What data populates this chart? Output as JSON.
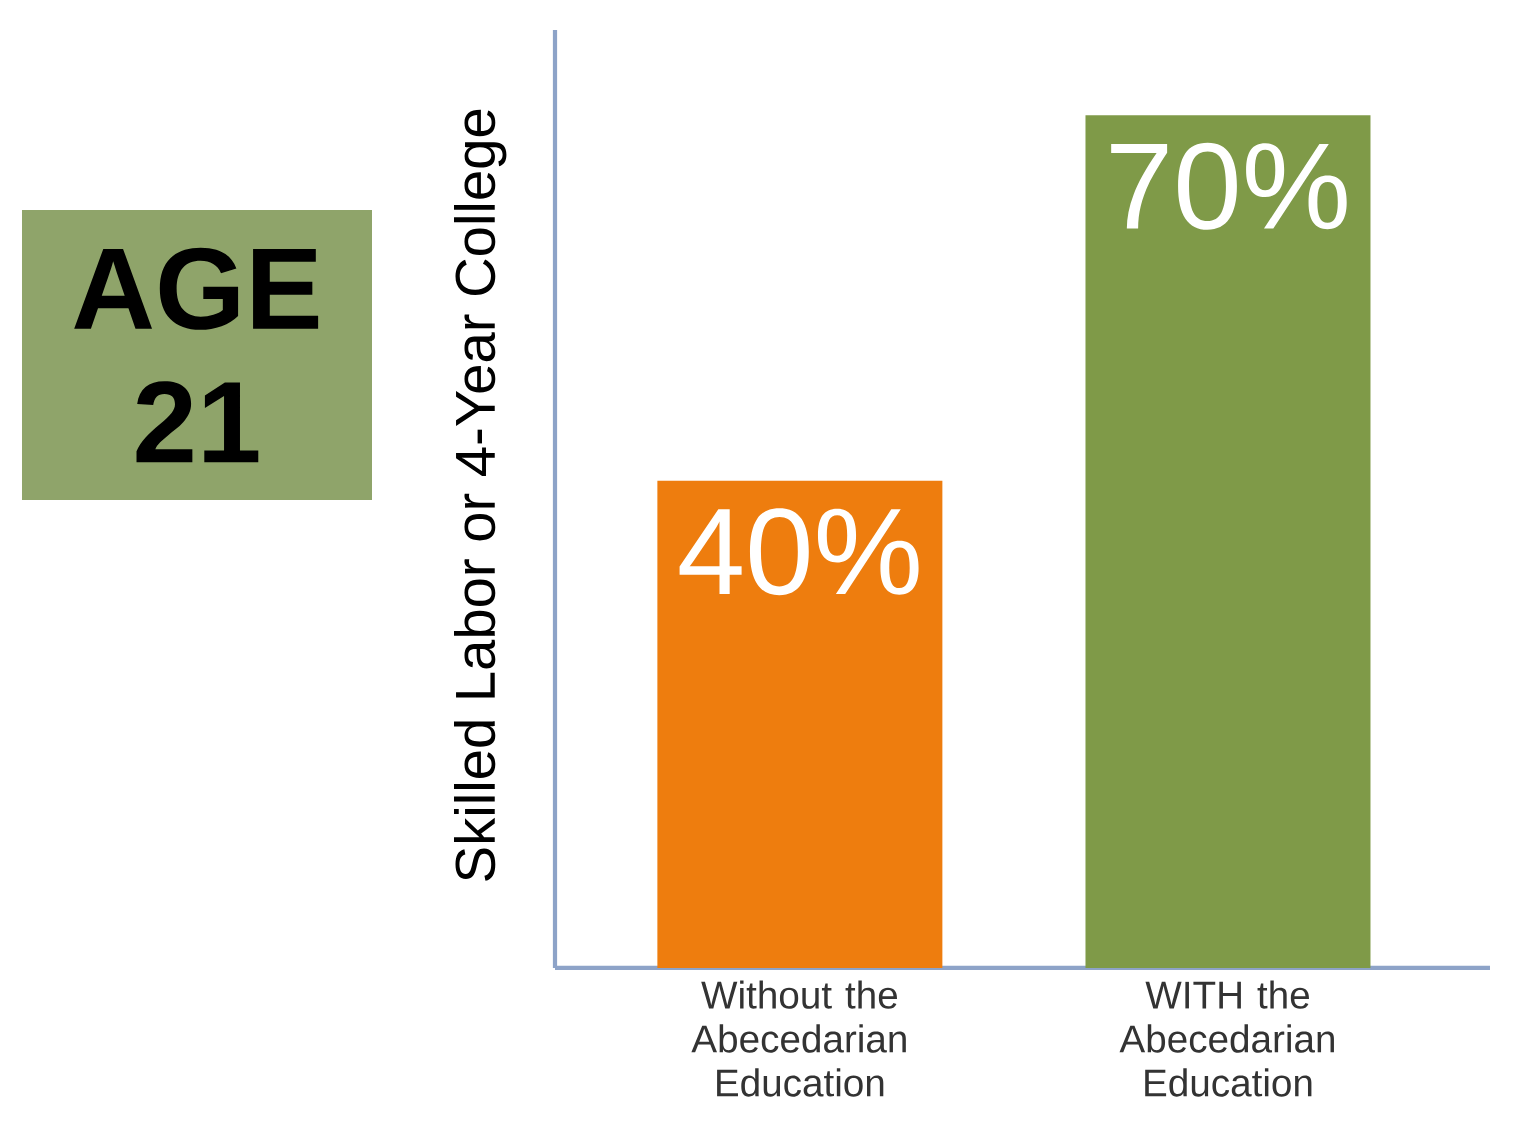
{
  "chart_data": {
    "type": "bar",
    "title": "AGE 21",
    "ylabel": "Skilled Labor or 4-Year College",
    "categories": [
      "Without the Abecedarian Education",
      "WITH the Abecedarian Education"
    ],
    "values": [
      40,
      70
    ],
    "colors": [
      "#ee7d0e",
      "#7f9a48"
    ],
    "value_labels": [
      "40%",
      "70%"
    ]
  }
}
